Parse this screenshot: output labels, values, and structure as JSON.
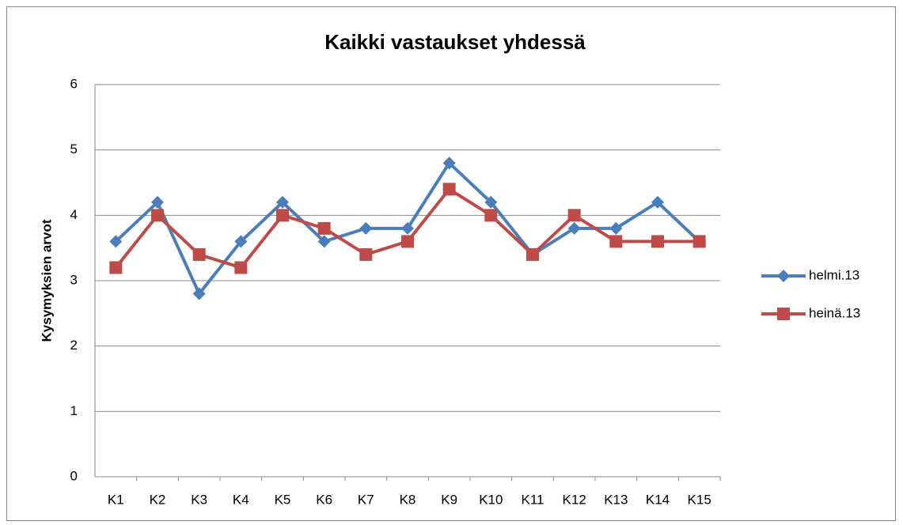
{
  "chart_data": {
    "type": "line",
    "title": "Kaikki vastaukset yhdessä",
    "ylabel": "Kysymyksien arvot",
    "categories": [
      "K1",
      "K2",
      "K3",
      "K4",
      "K5",
      "K6",
      "K7",
      "K8",
      "K9",
      "K10",
      "K11",
      "K12",
      "K13",
      "K14",
      "K15"
    ],
    "series": [
      {
        "name": "helmi.13",
        "color": "#4a7ebb",
        "marker": "diamond",
        "values": [
          3.6,
          4.2,
          2.8,
          3.6,
          4.2,
          3.6,
          3.8,
          3.8,
          4.8,
          4.2,
          3.4,
          3.8,
          3.8,
          4.2,
          3.6
        ]
      },
      {
        "name": "heinä.13",
        "color": "#be4b48",
        "marker": "square",
        "values": [
          3.2,
          4.0,
          3.4,
          3.2,
          4.0,
          3.8,
          3.4,
          3.6,
          4.4,
          4.0,
          3.4,
          4.0,
          3.6,
          3.6,
          3.6
        ]
      }
    ],
    "ylim": [
      0,
      6
    ],
    "yticks": [
      0,
      1,
      2,
      3,
      4,
      5,
      6
    ],
    "grid": true,
    "legend": "right"
  }
}
